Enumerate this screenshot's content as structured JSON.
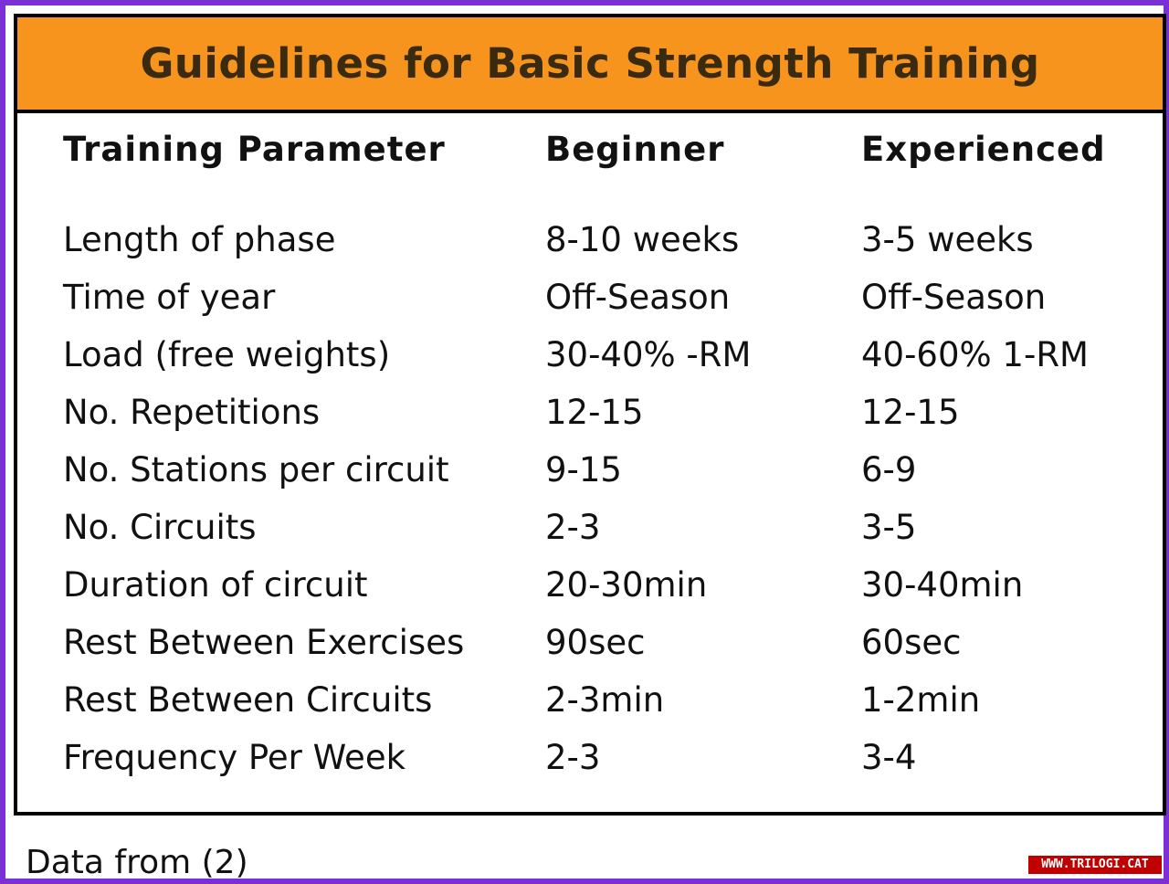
{
  "title": "Guidelines for Basic Strength Training",
  "headers": {
    "parameter": "Training Parameter",
    "beginner": "Beginner",
    "experienced": "Experienced"
  },
  "rows": [
    {
      "parameter": "Length of phase",
      "beginner": "8-10 weeks",
      "experienced": "3-5 weeks"
    },
    {
      "parameter": "Time of year",
      "beginner": "Off-Season",
      "experienced": "Off-Season"
    },
    {
      "parameter": "Load (free weights)",
      "beginner": "30-40% -RM",
      "experienced": "40-60% 1-RM"
    },
    {
      "parameter": "No. Repetitions",
      "beginner": "12-15",
      "experienced": "12-15"
    },
    {
      "parameter": "No. Stations per circuit",
      "beginner": "9-15",
      "experienced": "6-9"
    },
    {
      "parameter": "No. Circuits",
      "beginner": "2-3",
      "experienced": "3-5"
    },
    {
      "parameter": "Duration of circuit",
      "beginner": "20-30min",
      "experienced": "30-40min"
    },
    {
      "parameter": "Rest Between Exercises",
      "beginner": "90sec",
      "experienced": "60sec"
    },
    {
      "parameter": "Rest Between Circuits",
      "beginner": "2-3min",
      "experienced": "1-2min"
    },
    {
      "parameter": "Frequency Per Week",
      "beginner": "2-3",
      "experienced": "3-4"
    }
  ],
  "footer": "Data from (2)",
  "watermark": "WWW.TRILOGI.CAT",
  "colors": {
    "frame": "#7b2fd6",
    "title_bar": "#f7941d",
    "watermark": "#c00000"
  }
}
